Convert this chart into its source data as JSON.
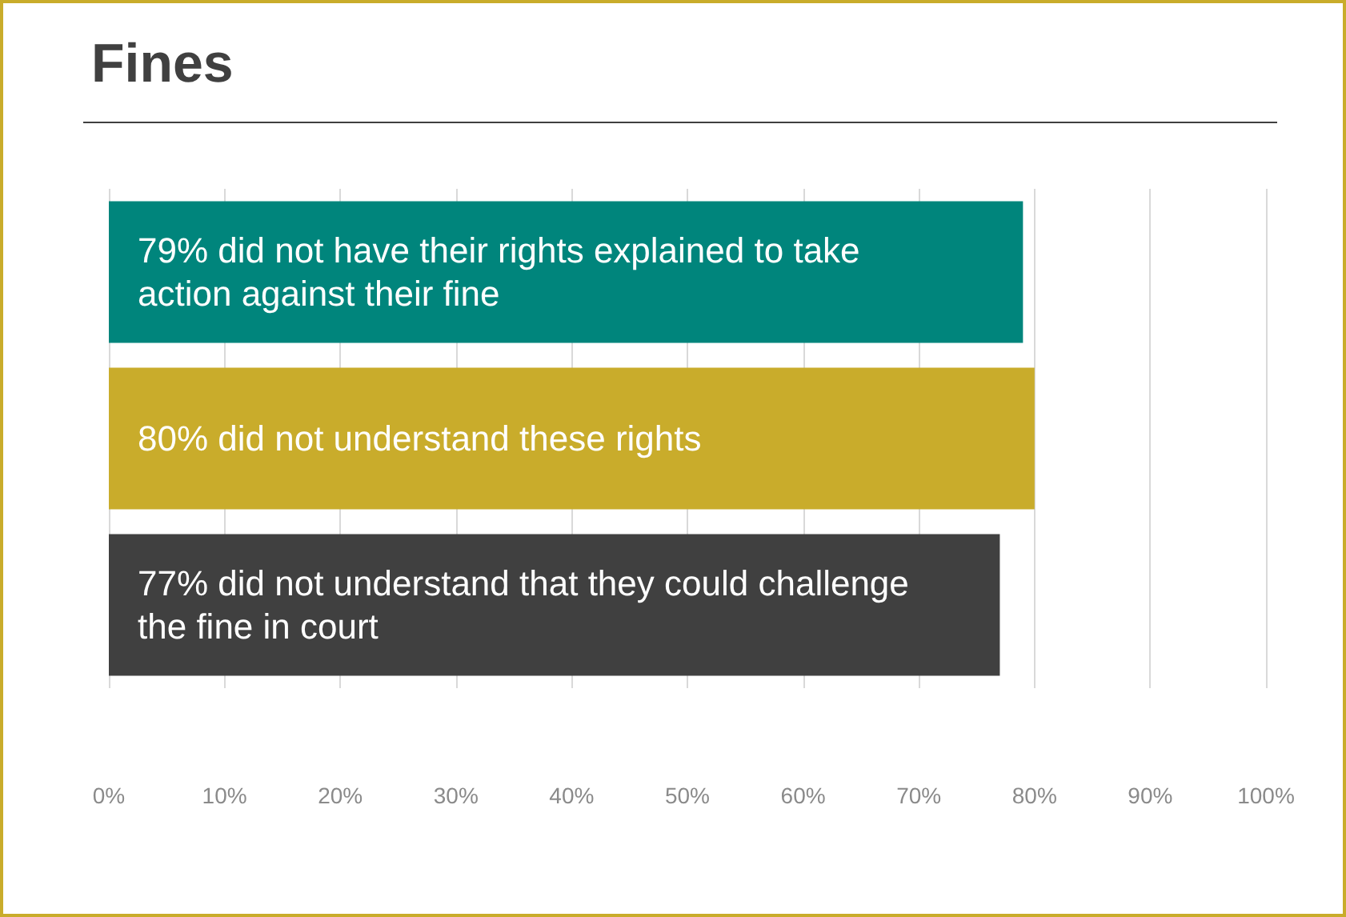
{
  "chart_data": {
    "type": "bar",
    "orientation": "horizontal",
    "title": "Fines",
    "categories": [
      "79% did not have their rights explained to take action against their fine",
      "80% did not understand these rights",
      "77% did not understand that they could challenge the fine in court"
    ],
    "values": [
      79,
      80,
      77
    ],
    "colors": [
      "#00857c",
      "#c9ac2b",
      "#404040"
    ],
    "xlim": [
      0,
      100
    ],
    "xticks": [
      {
        "value": 0,
        "label": "0%"
      },
      {
        "value": 10,
        "label": "10%"
      },
      {
        "value": 20,
        "label": "20%"
      },
      {
        "value": 30,
        "label": "30%"
      },
      {
        "value": 40,
        "label": "40%"
      },
      {
        "value": 50,
        "label": "50%"
      },
      {
        "value": 60,
        "label": "60%"
      },
      {
        "value": 70,
        "label": "70%"
      },
      {
        "value": 80,
        "label": "80%"
      },
      {
        "value": 90,
        "label": "90%"
      },
      {
        "value": 100,
        "label": "100%"
      }
    ],
    "grid": "x"
  }
}
